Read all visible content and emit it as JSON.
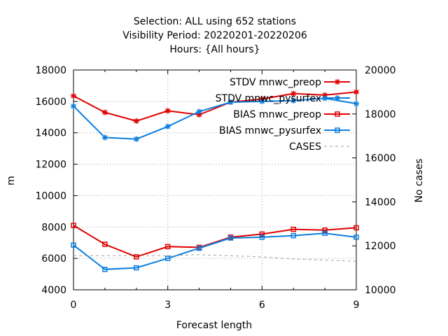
{
  "chart_data": {
    "type": "line",
    "title_lines": [
      "Selection: ALL using   652 stations",
      "Visibility   Period: 20220201-20220206",
      "Hours: {All hours}"
    ],
    "xlabel": "Forecast length",
    "ylabel": "m",
    "y2label": "No cases",
    "xlim": [
      0,
      9
    ],
    "ylim": [
      4000,
      18000
    ],
    "y2lim": [
      10000,
      20000
    ],
    "xticks": [
      0,
      3,
      6,
      9
    ],
    "yticks": [
      4000,
      6000,
      8000,
      10000,
      12000,
      14000,
      16000,
      18000
    ],
    "y2ticks": [
      10000,
      12000,
      14000,
      16000,
      18000,
      20000
    ],
    "grid": true,
    "legend_position": "top-right",
    "x": [
      0,
      1,
      2,
      3,
      4,
      5,
      6,
      7,
      8,
      9
    ],
    "series": [
      {
        "name": "STDV mnwc_preop",
        "color": "#e00000",
        "marker": "star",
        "axis": "y",
        "values": [
          16350,
          15300,
          14750,
          15400,
          15150,
          15950,
          16150,
          16500,
          16400,
          16600
        ]
      },
      {
        "name": "STDV mnwc_pysurfex",
        "color": "#0a7fe0",
        "marker": "star",
        "axis": "y",
        "values": [
          15700,
          13700,
          13600,
          14400,
          15350,
          15950,
          16000,
          16050,
          16200,
          15850
        ]
      },
      {
        "name": "BIAS mnwc_preop",
        "color": "#e00000",
        "marker": "square",
        "axis": "y",
        "values": [
          8100,
          6900,
          6100,
          6750,
          6700,
          7350,
          7550,
          7850,
          7800,
          7950
        ]
      },
      {
        "name": "BIAS mnwc_pysurfex",
        "color": "#0a7fe0",
        "marker": "square",
        "axis": "y",
        "values": [
          6850,
          5300,
          5400,
          6000,
          6650,
          7300,
          7350,
          7450,
          7600,
          7350
        ]
      },
      {
        "name": "CASES",
        "color": "#a0a0a0",
        "marker": "none",
        "dashed": true,
        "axis": "y2",
        "values": [
          11550,
          11550,
          11550,
          11550,
          11600,
          11550,
          11500,
          11400,
          11350,
          11300
        ]
      }
    ]
  }
}
